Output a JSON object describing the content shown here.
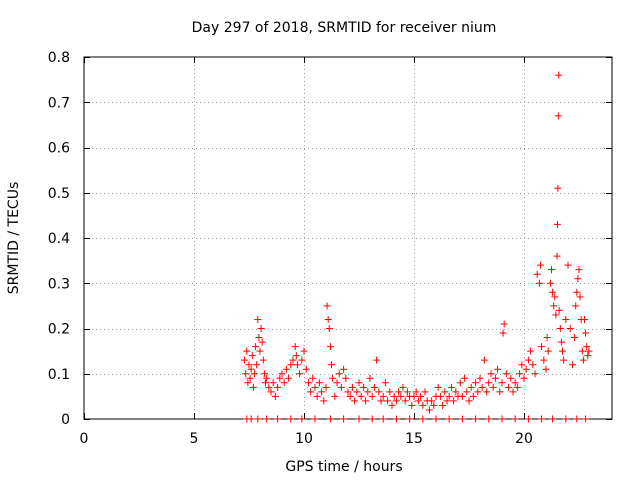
{
  "chart_data": {
    "type": "scatter",
    "title": "Day 297 of 2018, SRMTID for receiver nium",
    "xlabel": "GPS time / hours",
    "ylabel": "SRMTID / TECUs",
    "xlim": [
      0,
      24
    ],
    "ylim": [
      0,
      0.8
    ],
    "xticks": [
      0,
      5,
      10,
      15,
      20
    ],
    "xtick_labels": [
      "0",
      "5",
      "10",
      "15",
      "20"
    ],
    "yticks": [
      0,
      0.1,
      0.2,
      0.3,
      0.4,
      0.5,
      0.6,
      0.7,
      0.8
    ],
    "ytick_labels": [
      "0",
      "0.1",
      "0.2",
      "0.3",
      "0.4",
      "0.5",
      "0.6",
      "0.7",
      "0.8"
    ],
    "grid": true,
    "marker": "+",
    "marker_color": "#ff0000",
    "series": [
      {
        "name": "SRMTID",
        "points": [
          [
            7.3,
            0.13
          ],
          [
            7.35,
            0.1
          ],
          [
            7.4,
            0.15
          ],
          [
            7.45,
            0.08
          ],
          [
            7.5,
            0.12
          ],
          [
            7.55,
            0.09
          ],
          [
            7.6,
            0.11
          ],
          [
            7.65,
            0.14
          ],
          [
            7.7,
            0.07
          ],
          [
            7.75,
            0.1
          ],
          [
            7.8,
            0.16
          ],
          [
            7.85,
            0.12
          ],
          [
            7.9,
            0.22
          ],
          [
            7.95,
            0.18
          ],
          [
            8.0,
            0.15
          ],
          [
            8.05,
            0.2
          ],
          [
            8.1,
            0.17
          ],
          [
            8.15,
            0.13
          ],
          [
            8.2,
            0.1
          ],
          [
            8.25,
            0.08
          ],
          [
            8.3,
            0.09
          ],
          [
            8.4,
            0.07
          ],
          [
            8.5,
            0.06
          ],
          [
            8.6,
            0.08
          ],
          [
            8.7,
            0.05
          ],
          [
            8.8,
            0.07
          ],
          [
            8.9,
            0.09
          ],
          [
            9.0,
            0.1
          ],
          [
            9.1,
            0.08
          ],
          [
            9.2,
            0.11
          ],
          [
            9.3,
            0.09
          ],
          [
            9.4,
            0.12
          ],
          [
            9.5,
            0.13
          ],
          [
            9.6,
            0.16
          ],
          [
            9.65,
            0.14
          ],
          [
            9.7,
            0.12
          ],
          [
            9.8,
            0.1
          ],
          [
            9.9,
            0.13
          ],
          [
            10.0,
            0.15
          ],
          [
            10.1,
            0.11
          ],
          [
            10.2,
            0.08
          ],
          [
            10.3,
            0.06
          ],
          [
            10.4,
            0.09
          ],
          [
            10.5,
            0.07
          ],
          [
            10.6,
            0.05
          ],
          [
            10.7,
            0.08
          ],
          [
            10.8,
            0.06
          ],
          [
            10.9,
            0.04
          ],
          [
            11.0,
            0.07
          ],
          [
            11.05,
            0.25
          ],
          [
            11.1,
            0.22
          ],
          [
            11.15,
            0.2
          ],
          [
            11.2,
            0.16
          ],
          [
            11.25,
            0.12
          ],
          [
            11.3,
            0.09
          ],
          [
            11.4,
            0.05
          ],
          [
            11.5,
            0.08
          ],
          [
            11.6,
            0.1
          ],
          [
            11.7,
            0.07
          ],
          [
            11.8,
            0.11
          ],
          [
            11.9,
            0.09
          ],
          [
            12.0,
            0.06
          ],
          [
            12.1,
            0.05
          ],
          [
            12.2,
            0.07
          ],
          [
            12.3,
            0.04
          ],
          [
            12.4,
            0.06
          ],
          [
            12.5,
            0.08
          ],
          [
            12.6,
            0.05
          ],
          [
            12.7,
            0.07
          ],
          [
            12.8,
            0.04
          ],
          [
            12.9,
            0.06
          ],
          [
            13.0,
            0.09
          ],
          [
            13.1,
            0.05
          ],
          [
            13.2,
            0.07
          ],
          [
            13.3,
            0.13
          ],
          [
            13.4,
            0.06
          ],
          [
            13.5,
            0.04
          ],
          [
            13.6,
            0.05
          ],
          [
            13.7,
            0.08
          ],
          [
            13.8,
            0.04
          ],
          [
            13.9,
            0.06
          ],
          [
            14.0,
            0.03
          ],
          [
            14.1,
            0.05
          ],
          [
            14.2,
            0.04
          ],
          [
            14.3,
            0.06
          ],
          [
            14.4,
            0.05
          ],
          [
            14.5,
            0.07
          ],
          [
            14.6,
            0.04
          ],
          [
            14.7,
            0.06
          ],
          [
            14.8,
            0.05
          ],
          [
            14.9,
            0.03
          ],
          [
            15.0,
            0.05
          ],
          [
            15.1,
            0.06
          ],
          [
            15.2,
            0.04
          ],
          [
            15.3,
            0.05
          ],
          [
            15.4,
            0.03
          ],
          [
            15.5,
            0.06
          ],
          [
            15.6,
            0.04
          ],
          [
            15.7,
            0.02
          ],
          [
            15.8,
            0.04
          ],
          [
            15.9,
            0.03
          ],
          [
            16.0,
            0.05
          ],
          [
            16.1,
            0.07
          ],
          [
            16.2,
            0.05
          ],
          [
            16.3,
            0.03
          ],
          [
            16.4,
            0.06
          ],
          [
            16.5,
            0.04
          ],
          [
            16.6,
            0.05
          ],
          [
            16.7,
            0.07
          ],
          [
            16.8,
            0.04
          ],
          [
            16.9,
            0.06
          ],
          [
            17.0,
            0.05
          ],
          [
            17.1,
            0.08
          ],
          [
            17.2,
            0.05
          ],
          [
            17.3,
            0.09
          ],
          [
            17.4,
            0.06
          ],
          [
            17.5,
            0.04
          ],
          [
            17.6,
            0.07
          ],
          [
            17.7,
            0.05
          ],
          [
            17.8,
            0.08
          ],
          [
            17.9,
            0.06
          ],
          [
            18.0,
            0.09
          ],
          [
            18.1,
            0.07
          ],
          [
            18.2,
            0.13
          ],
          [
            18.3,
            0.06
          ],
          [
            18.4,
            0.08
          ],
          [
            18.5,
            0.1
          ],
          [
            18.6,
            0.07
          ],
          [
            18.7,
            0.09
          ],
          [
            18.8,
            0.11
          ],
          [
            18.9,
            0.06
          ],
          [
            19.0,
            0.08
          ],
          [
            19.05,
            0.19
          ],
          [
            19.1,
            0.21
          ],
          [
            19.2,
            0.1
          ],
          [
            19.3,
            0.07
          ],
          [
            19.4,
            0.09
          ],
          [
            19.5,
            0.06
          ],
          [
            19.6,
            0.08
          ],
          [
            19.7,
            0.07
          ],
          [
            19.8,
            0.1
          ],
          [
            19.9,
            0.12
          ],
          [
            20.0,
            0.09
          ],
          [
            20.1,
            0.11
          ],
          [
            20.2,
            0.13
          ],
          [
            20.3,
            0.15
          ],
          [
            20.4,
            0.12
          ],
          [
            20.5,
            0.1
          ],
          [
            20.6,
            0.32
          ],
          [
            20.7,
            0.3
          ],
          [
            20.75,
            0.34
          ],
          [
            20.8,
            0.16
          ],
          [
            20.9,
            0.13
          ],
          [
            21.0,
            0.11
          ],
          [
            21.05,
            0.18
          ],
          [
            21.1,
            0.15
          ],
          [
            21.2,
            0.3
          ],
          [
            21.25,
            0.33
          ],
          [
            21.3,
            0.28
          ],
          [
            21.35,
            0.25
          ],
          [
            21.4,
            0.27
          ],
          [
            21.45,
            0.23
          ],
          [
            21.5,
            0.36
          ],
          [
            21.52,
            0.43
          ],
          [
            21.54,
            0.51
          ],
          [
            21.56,
            0.67
          ],
          [
            21.58,
            0.76
          ],
          [
            21.6,
            0.24
          ],
          [
            21.65,
            0.2
          ],
          [
            21.7,
            0.17
          ],
          [
            21.75,
            0.15
          ],
          [
            21.8,
            0.13
          ],
          [
            21.9,
            0.22
          ],
          [
            22.0,
            0.34
          ],
          [
            22.1,
            0.2
          ],
          [
            22.2,
            0.12
          ],
          [
            22.3,
            0.18
          ],
          [
            22.35,
            0.25
          ],
          [
            22.4,
            0.28
          ],
          [
            22.45,
            0.31
          ],
          [
            22.5,
            0.33
          ],
          [
            22.55,
            0.27
          ],
          [
            22.6,
            0.22
          ],
          [
            22.65,
            0.15
          ],
          [
            22.7,
            0.13
          ],
          [
            22.75,
            0.22
          ],
          [
            22.8,
            0.19
          ],
          [
            22.85,
            0.16
          ],
          [
            22.9,
            0.14
          ],
          [
            22.95,
            0.15
          ],
          [
            7.4,
            0.0
          ],
          [
            7.6,
            0.0
          ],
          [
            7.9,
            0.0
          ],
          [
            8.3,
            0.0
          ],
          [
            8.8,
            0.0
          ],
          [
            9.4,
            0.0
          ],
          [
            9.9,
            0.0
          ],
          [
            10.5,
            0.0
          ],
          [
            11.2,
            0.0
          ],
          [
            11.8,
            0.0
          ],
          [
            12.5,
            0.0
          ],
          [
            13.1,
            0.0
          ],
          [
            13.6,
            0.0
          ],
          [
            14.2,
            0.0
          ],
          [
            14.8,
            0.0
          ],
          [
            15.4,
            0.0
          ],
          [
            16.0,
            0.0
          ],
          [
            16.6,
            0.0
          ],
          [
            17.2,
            0.0
          ],
          [
            17.8,
            0.0
          ],
          [
            18.4,
            0.0
          ],
          [
            19.0,
            0.0
          ],
          [
            19.6,
            0.0
          ],
          [
            20.2,
            0.0
          ],
          [
            20.8,
            0.0
          ],
          [
            21.3,
            0.0
          ],
          [
            21.9,
            0.0
          ],
          [
            22.4,
            0.0
          ],
          [
            22.8,
            0.0
          ]
        ]
      }
    ]
  }
}
